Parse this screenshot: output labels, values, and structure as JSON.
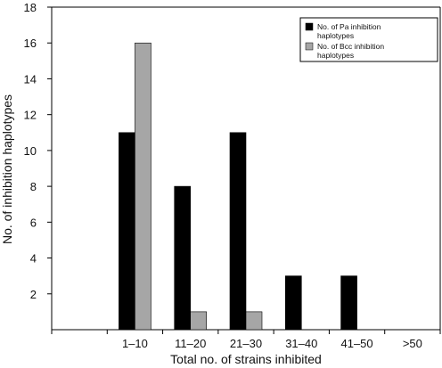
{
  "chart_data": {
    "type": "bar",
    "title": "",
    "xlabel": "Total no. of strains inhibited",
    "ylabel": "No. of inhibition haplotypes",
    "categories": [
      "",
      "1–10",
      "11–20",
      "21–30",
      "31–40",
      "41–50",
      ">50"
    ],
    "series": [
      {
        "name": "No. of Pa inhibition haplotypes",
        "color": "#000000",
        "values": [
          0,
          11,
          8,
          11,
          3,
          3,
          0
        ]
      },
      {
        "name": "No. of Bcc inhibition haplotypes",
        "color": "#a6a6a6",
        "values": [
          0,
          16,
          1,
          1,
          0,
          0,
          0
        ]
      }
    ],
    "yticks": [
      2,
      4,
      6,
      8,
      10,
      12,
      14,
      16,
      18
    ],
    "ylim": [
      0,
      18
    ],
    "grid": false,
    "legend_position": "top-right"
  }
}
